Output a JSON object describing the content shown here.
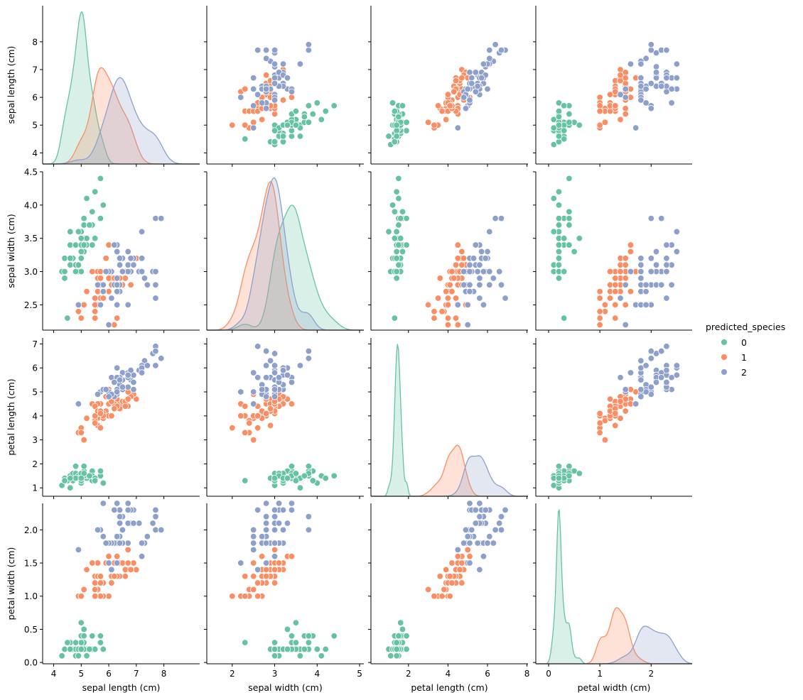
{
  "chart_data": {
    "type": "scatter",
    "title": "",
    "variables": [
      "sepal length (cm)",
      "sepal width (cm)",
      "petal length (cm)",
      "petal width (cm)"
    ],
    "legend": {
      "title": "predicted_species",
      "position": "right",
      "entries": [
        {
          "label": "0",
          "color": "#66c2a5"
        },
        {
          "label": "1",
          "color": "#fc8d62"
        },
        {
          "label": "2",
          "color": "#8da0cb"
        }
      ]
    },
    "axes": [
      {
        "name": "sepal length (cm)",
        "range": [
          3.6,
          9.3
        ],
        "ticks": [
          4,
          5,
          6,
          7,
          8
        ],
        "tick_labels": [
          "4",
          "5",
          "6",
          "7",
          "8"
        ]
      },
      {
        "name": "sepal width (cm)",
        "range": [
          2.12,
          4.5
        ],
        "ticks": [
          2.5,
          3.0,
          3.5,
          4.0,
          4.5
        ],
        "tick_labels": [
          "2.5",
          "3.0",
          "3.5",
          "4.0",
          "4.5"
        ],
        "xrange": [
          1.4,
          5.1
        ],
        "xticks": [
          2,
          3,
          4,
          5
        ],
        "xtick_labels": [
          "2",
          "3",
          "4",
          "5"
        ]
      },
      {
        "name": "petal length (cm)",
        "range": [
          0.65,
          7.25
        ],
        "ticks": [
          1,
          2,
          3,
          4,
          5,
          6,
          7
        ],
        "tick_labels": [
          "1",
          "2",
          "3",
          "4",
          "5",
          "6",
          "7"
        ],
        "xrange": [
          0.1,
          8.05
        ],
        "xticks": [
          2,
          4,
          6,
          8
        ],
        "xtick_labels": [
          "2",
          "4",
          "6",
          "8"
        ]
      },
      {
        "name": "petal width (cm)",
        "range": [
          -0.02,
          2.4
        ],
        "ticks": [
          0.0,
          0.5,
          1.0,
          1.5,
          2.0
        ],
        "tick_labels": [
          "0.0",
          "0.5",
          "1.0",
          "1.5",
          "2.0"
        ],
        "xrange": [
          -0.25,
          2.8
        ],
        "xticks": [
          0,
          1,
          2
        ],
        "xtick_labels": [
          "0",
          "1",
          "2"
        ]
      }
    ],
    "series": [
      {
        "name": "0",
        "color": "#66c2a5",
        "points": [
          [
            5.1,
            3.5,
            1.4,
            0.2
          ],
          [
            4.9,
            3.0,
            1.4,
            0.2
          ],
          [
            4.7,
            3.2,
            1.3,
            0.2
          ],
          [
            4.6,
            3.1,
            1.5,
            0.2
          ],
          [
            5.0,
            3.6,
            1.4,
            0.2
          ],
          [
            5.4,
            3.9,
            1.7,
            0.4
          ],
          [
            4.6,
            3.4,
            1.4,
            0.3
          ],
          [
            5.0,
            3.4,
            1.5,
            0.2
          ],
          [
            4.4,
            2.9,
            1.4,
            0.2
          ],
          [
            4.9,
            3.1,
            1.5,
            0.1
          ],
          [
            5.4,
            3.7,
            1.5,
            0.2
          ],
          [
            4.8,
            3.4,
            1.6,
            0.2
          ],
          [
            4.8,
            3.0,
            1.4,
            0.1
          ],
          [
            4.3,
            3.0,
            1.1,
            0.1
          ],
          [
            5.8,
            4.0,
            1.2,
            0.2
          ],
          [
            5.7,
            4.4,
            1.5,
            0.4
          ],
          [
            5.4,
            3.9,
            1.3,
            0.4
          ],
          [
            5.1,
            3.5,
            1.4,
            0.3
          ],
          [
            5.7,
            3.8,
            1.7,
            0.3
          ],
          [
            5.1,
            3.8,
            1.5,
            0.3
          ],
          [
            5.4,
            3.4,
            1.7,
            0.2
          ],
          [
            5.1,
            3.7,
            1.5,
            0.4
          ],
          [
            4.6,
            3.6,
            1.0,
            0.2
          ],
          [
            5.1,
            3.3,
            1.7,
            0.5
          ],
          [
            4.8,
            3.4,
            1.9,
            0.2
          ],
          [
            5.0,
            3.0,
            1.6,
            0.2
          ],
          [
            5.0,
            3.4,
            1.6,
            0.4
          ],
          [
            5.2,
            3.5,
            1.5,
            0.2
          ],
          [
            5.2,
            3.4,
            1.4,
            0.2
          ],
          [
            4.7,
            3.2,
            1.6,
            0.2
          ],
          [
            4.8,
            3.1,
            1.6,
            0.2
          ],
          [
            5.4,
            3.4,
            1.5,
            0.4
          ],
          [
            5.2,
            4.1,
            1.5,
            0.1
          ],
          [
            5.5,
            4.2,
            1.4,
            0.2
          ],
          [
            4.9,
            3.1,
            1.5,
            0.2
          ],
          [
            5.0,
            3.2,
            1.2,
            0.2
          ],
          [
            5.5,
            3.5,
            1.3,
            0.2
          ],
          [
            4.9,
            3.6,
            1.4,
            0.1
          ],
          [
            4.4,
            3.0,
            1.3,
            0.2
          ],
          [
            5.1,
            3.4,
            1.5,
            0.2
          ],
          [
            5.0,
            3.5,
            1.3,
            0.3
          ],
          [
            4.5,
            2.3,
            1.3,
            0.3
          ],
          [
            4.4,
            3.2,
            1.3,
            0.2
          ],
          [
            5.0,
            3.5,
            1.6,
            0.6
          ],
          [
            5.1,
            3.8,
            1.9,
            0.4
          ],
          [
            4.8,
            3.0,
            1.4,
            0.3
          ],
          [
            5.1,
            3.8,
            1.6,
            0.2
          ],
          [
            4.6,
            3.2,
            1.4,
            0.2
          ],
          [
            5.3,
            3.7,
            1.5,
            0.2
          ],
          [
            5.0,
            3.3,
            1.4,
            0.2
          ]
        ]
      },
      {
        "name": "1",
        "color": "#fc8d62",
        "points": [
          [
            7.0,
            3.2,
            4.7,
            1.4
          ],
          [
            6.4,
            3.2,
            4.5,
            1.5
          ],
          [
            6.9,
            3.1,
            4.9,
            1.5
          ],
          [
            5.5,
            2.3,
            4.0,
            1.3
          ],
          [
            6.5,
            2.8,
            4.6,
            1.5
          ],
          [
            5.7,
            2.8,
            4.5,
            1.3
          ],
          [
            6.3,
            3.3,
            4.7,
            1.6
          ],
          [
            4.9,
            2.4,
            3.3,
            1.0
          ],
          [
            6.6,
            2.9,
            4.6,
            1.3
          ],
          [
            5.2,
            2.7,
            3.9,
            1.4
          ],
          [
            5.0,
            2.0,
            3.5,
            1.0
          ],
          [
            5.9,
            3.0,
            4.2,
            1.5
          ],
          [
            6.0,
            2.2,
            4.0,
            1.0
          ],
          [
            6.1,
            2.9,
            4.7,
            1.4
          ],
          [
            5.6,
            2.9,
            3.6,
            1.3
          ],
          [
            6.7,
            3.1,
            4.4,
            1.4
          ],
          [
            5.6,
            3.0,
            4.5,
            1.5
          ],
          [
            5.8,
            2.7,
            4.1,
            1.0
          ],
          [
            6.2,
            2.2,
            4.5,
            1.5
          ],
          [
            5.6,
            2.5,
            3.9,
            1.1
          ],
          [
            5.9,
            3.2,
            4.8,
            1.8
          ],
          [
            6.1,
            2.8,
            4.0,
            1.3
          ],
          [
            6.3,
            2.5,
            4.9,
            1.5
          ],
          [
            6.1,
            2.8,
            4.7,
            1.2
          ],
          [
            6.4,
            2.9,
            4.3,
            1.3
          ],
          [
            6.6,
            3.0,
            4.4,
            1.4
          ],
          [
            6.8,
            2.8,
            4.8,
            1.4
          ],
          [
            6.7,
            3.0,
            5.0,
            1.7
          ],
          [
            6.0,
            2.9,
            4.5,
            1.5
          ],
          [
            5.7,
            2.6,
            3.5,
            1.0
          ],
          [
            5.5,
            2.4,
            3.8,
            1.1
          ],
          [
            5.5,
            2.4,
            3.7,
            1.0
          ],
          [
            5.8,
            2.7,
            3.9,
            1.2
          ],
          [
            6.0,
            2.7,
            5.1,
            1.6
          ],
          [
            5.4,
            3.0,
            4.5,
            1.5
          ],
          [
            6.0,
            3.4,
            4.5,
            1.6
          ],
          [
            6.7,
            3.1,
            4.7,
            1.5
          ],
          [
            6.3,
            2.3,
            4.4,
            1.3
          ],
          [
            5.6,
            3.0,
            4.1,
            1.3
          ],
          [
            5.5,
            2.5,
            4.0,
            1.3
          ],
          [
            5.5,
            2.6,
            4.4,
            1.2
          ],
          [
            6.1,
            3.0,
            4.6,
            1.4
          ],
          [
            5.8,
            2.6,
            4.0,
            1.2
          ],
          [
            5.0,
            2.3,
            3.3,
            1.0
          ],
          [
            5.6,
            2.7,
            4.2,
            1.3
          ],
          [
            5.7,
            3.0,
            4.2,
            1.2
          ],
          [
            5.7,
            2.9,
            4.2,
            1.3
          ],
          [
            6.2,
            2.9,
            4.3,
            1.3
          ],
          [
            5.1,
            2.5,
            3.0,
            1.1
          ],
          [
            5.7,
            2.8,
            4.1,
            1.3
          ]
        ]
      },
      {
        "name": "2",
        "color": "#8da0cb",
        "points": [
          [
            6.3,
            3.3,
            6.0,
            2.5
          ],
          [
            5.8,
            2.7,
            5.1,
            1.9
          ],
          [
            7.1,
            3.0,
            5.9,
            2.1
          ],
          [
            6.3,
            2.9,
            5.6,
            1.8
          ],
          [
            6.5,
            3.0,
            5.8,
            2.2
          ],
          [
            7.6,
            3.0,
            6.6,
            2.1
          ],
          [
            4.9,
            2.5,
            4.5,
            1.7
          ],
          [
            7.3,
            2.9,
            6.3,
            1.8
          ],
          [
            6.7,
            2.5,
            5.8,
            1.8
          ],
          [
            7.2,
            3.6,
            6.1,
            2.5
          ],
          [
            6.5,
            3.2,
            5.1,
            2.0
          ],
          [
            6.4,
            2.7,
            5.3,
            1.9
          ],
          [
            6.8,
            3.0,
            5.5,
            2.1
          ],
          [
            5.7,
            2.5,
            5.0,
            2.0
          ],
          [
            5.8,
            2.8,
            5.1,
            2.4
          ],
          [
            6.4,
            3.2,
            5.3,
            2.3
          ],
          [
            6.5,
            3.0,
            5.5,
            1.8
          ],
          [
            7.7,
            3.8,
            6.7,
            2.2
          ],
          [
            7.7,
            2.6,
            6.9,
            2.3
          ],
          [
            6.0,
            2.2,
            5.0,
            1.5
          ],
          [
            6.9,
            3.2,
            5.7,
            2.3
          ],
          [
            5.6,
            2.8,
            4.9,
            2.0
          ],
          [
            7.7,
            2.8,
            6.7,
            2.0
          ],
          [
            6.3,
            2.7,
            4.9,
            1.8
          ],
          [
            6.7,
            3.3,
            5.7,
            2.1
          ],
          [
            7.2,
            3.2,
            6.0,
            1.8
          ],
          [
            6.2,
            2.8,
            4.8,
            1.8
          ],
          [
            6.1,
            3.0,
            4.9,
            1.8
          ],
          [
            6.4,
            2.8,
            5.6,
            2.1
          ],
          [
            7.2,
            3.0,
            5.8,
            1.6
          ],
          [
            7.4,
            2.8,
            6.1,
            1.9
          ],
          [
            7.9,
            3.8,
            6.4,
            2.0
          ],
          [
            6.4,
            2.8,
            5.6,
            2.2
          ],
          [
            6.3,
            2.8,
            5.1,
            1.5
          ],
          [
            6.1,
            2.6,
            5.6,
            1.4
          ],
          [
            7.7,
            3.0,
            6.1,
            2.3
          ],
          [
            6.3,
            3.4,
            5.6,
            2.4
          ],
          [
            6.4,
            3.1,
            5.5,
            1.8
          ],
          [
            6.0,
            3.0,
            4.8,
            1.8
          ],
          [
            6.9,
            3.1,
            5.4,
            2.1
          ],
          [
            6.7,
            3.1,
            5.6,
            2.4
          ],
          [
            6.9,
            3.1,
            5.1,
            2.3
          ],
          [
            5.8,
            2.7,
            5.1,
            1.9
          ],
          [
            6.8,
            3.2,
            5.9,
            2.3
          ],
          [
            6.7,
            3.3,
            5.7,
            2.5
          ],
          [
            6.7,
            3.0,
            5.2,
            2.3
          ],
          [
            6.3,
            2.5,
            5.0,
            1.9
          ],
          [
            6.5,
            3.0,
            5.2,
            2.0
          ],
          [
            6.2,
            3.4,
            5.4,
            2.3
          ],
          [
            5.9,
            3.0,
            5.1,
            1.8
          ]
        ]
      }
    ]
  }
}
